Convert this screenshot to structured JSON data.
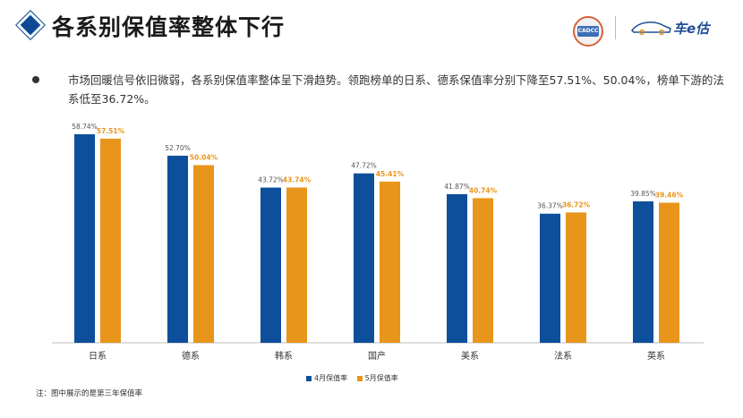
{
  "header": {
    "title": "各系别保值率整体下行",
    "logo_badge_text": "CADCC",
    "brand_text": "车e估"
  },
  "summary": {
    "text": "市场回暖信号依旧微弱，各系别保值率整体呈下滑趋势。领跑榜单的日系、德系保值率分别下降至57.51%、50.04%，榜单下游的法系低至36.72%。"
  },
  "footnote": "注：图中展示的是第三年保值率",
  "colors": {
    "april": "#0e4f9c",
    "may": "#e8951c",
    "title_accent": "#0d4a93",
    "may_label": "#e8951c",
    "april_label": "#555555"
  },
  "chart_data": {
    "type": "bar",
    "categories": [
      "日系",
      "德系",
      "韩系",
      "国产",
      "美系",
      "法系",
      "英系"
    ],
    "series": [
      {
        "name": "4月保值率",
        "values": [
          58.74,
          52.7,
          43.72,
          47.72,
          41.87,
          36.37,
          39.85
        ],
        "labels": [
          "58.74%",
          "52.70%",
          "43.72%",
          "47.72%",
          "41.87%",
          "36.37%",
          "39.85%"
        ]
      },
      {
        "name": "5月保值率",
        "values": [
          57.51,
          50.04,
          43.74,
          45.41,
          40.74,
          36.72,
          39.46
        ],
        "labels": [
          "57.51%",
          "50.04%",
          "43.74%",
          "45.41%",
          "40.74%",
          "36.72%",
          "39.46%"
        ]
      }
    ],
    "ylim": [
      0,
      60
    ],
    "grid": false,
    "legend": "bottom"
  }
}
